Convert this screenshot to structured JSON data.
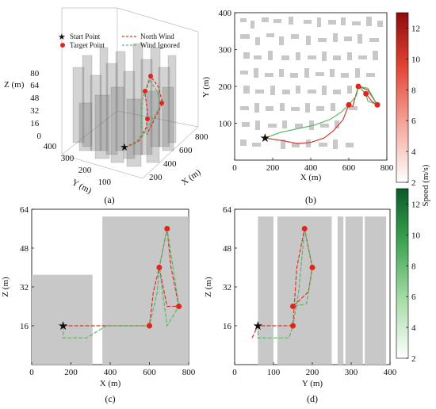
{
  "legend": {
    "start_point": "Start Point",
    "target_point": "Target Point",
    "north_wind": "North Wind",
    "wind_ignored": "Wind Ignored"
  },
  "colors": {
    "north_wind": "#d9362b",
    "wind_ignored": "#58b86a",
    "building": "#c8c8c8",
    "start": "#1f8a3a",
    "target": "#e0251b"
  },
  "colorbars": [
    {
      "label": "Speed (m/s)",
      "ticks": [
        "2",
        "4",
        "6",
        "8",
        "10",
        "12"
      ],
      "range": [
        2,
        13
      ],
      "colors": [
        "#ffffff",
        "#f5a49a",
        "#e0402f",
        "#8c0d0d"
      ]
    },
    {
      "label": "",
      "ticks": [
        "2",
        "4",
        "6",
        "8",
        "10",
        "12"
      ],
      "range": [
        2,
        13
      ],
      "colors": [
        "#ffffff",
        "#a6dba8",
        "#39a24f",
        "#0b5a2a"
      ]
    }
  ],
  "chart_data": [
    {
      "panel": "(a)",
      "type": "scatter",
      "kind": "3d-trajectory",
      "xlabel": "X (m)",
      "ylabel": "Y (m)",
      "zlabel": "Z (m)",
      "xticks": [
        "200",
        "400",
        "600",
        "800"
      ],
      "yticks": [
        "100",
        "200",
        "300",
        "400"
      ],
      "zticks": [
        "0",
        "16",
        "32",
        "48",
        "64",
        "80"
      ],
      "start": {
        "x": 160,
        "y": 60,
        "z": 16
      },
      "targets": [
        {
          "x": 600,
          "y": 150,
          "z": 16
        },
        {
          "x": 650,
          "y": 200,
          "z": 40
        },
        {
          "x": 690,
          "y": 180,
          "z": 56
        },
        {
          "x": 750,
          "y": 150,
          "z": 24
        }
      ]
    },
    {
      "panel": "(b)",
      "type": "line",
      "xlabel": "X (m)",
      "ylabel": "Y (m)",
      "xlim": [
        0,
        800
      ],
      "ylim": [
        0,
        400
      ],
      "xticks": [
        "0",
        "200",
        "400",
        "600",
        "800"
      ],
      "yticks": [
        "100",
        "200",
        "300",
        "400"
      ],
      "start": {
        "x": 160,
        "y": 60
      },
      "targets": [
        {
          "x": 600,
          "y": 150
        },
        {
          "x": 650,
          "y": 200
        },
        {
          "x": 690,
          "y": 180
        },
        {
          "x": 750,
          "y": 150
        }
      ],
      "series": [
        {
          "name": "North Wind",
          "x": [
            160,
            260,
            330,
            400,
            470,
            520,
            570,
            600,
            620,
            650,
            700,
            750,
            720,
            690,
            650
          ],
          "y": [
            60,
            52,
            45,
            48,
            60,
            80,
            110,
            150,
            145,
            200,
            190,
            150,
            160,
            180,
            200
          ]
        },
        {
          "name": "Wind Ignored",
          "x": [
            160,
            240,
            330,
            420,
            500,
            560,
            600,
            640,
            650,
            700,
            750,
            700,
            690,
            650
          ],
          "y": [
            60,
            75,
            85,
            95,
            110,
            130,
            150,
            175,
            200,
            195,
            150,
            160,
            180,
            200
          ]
        }
      ]
    },
    {
      "panel": "(c)",
      "type": "line",
      "xlabel": "X (m)",
      "ylabel": "Z (m)",
      "xlim": [
        0,
        800
      ],
      "ylim": [
        0,
        64
      ],
      "xticks": [
        "0",
        "200",
        "400",
        "600",
        "800"
      ],
      "yticks": [
        "16",
        "32",
        "48",
        "64"
      ],
      "start": {
        "x": 160,
        "y": 16
      },
      "targets": [
        {
          "x": 600,
          "y": 16
        },
        {
          "x": 650,
          "y": 40
        },
        {
          "x": 690,
          "y": 56
        },
        {
          "x": 750,
          "y": 24
        }
      ],
      "buildings": [
        {
          "x0": 0,
          "x1": 310,
          "y": 37
        },
        {
          "x0": 360,
          "x1": 800,
          "y": 61
        }
      ],
      "series": [
        {
          "name": "North Wind",
          "x": [
            160,
            600,
            620,
            650,
            690,
            710,
            750,
            690,
            650
          ],
          "y": [
            16,
            16,
            30,
            40,
            56,
            40,
            24,
            24,
            40
          ]
        },
        {
          "name": "Wind Ignored",
          "x": [
            160,
            160,
            280,
            380,
            600,
            640,
            650,
            690,
            730,
            750,
            690,
            650
          ],
          "y": [
            16,
            11,
            11,
            16,
            16,
            30,
            40,
            56,
            35,
            24,
            16,
            40
          ]
        }
      ]
    },
    {
      "panel": "(d)",
      "type": "line",
      "xlabel": "Y (m)",
      "ylabel": "Z (m)",
      "xlim": [
        0,
        400
      ],
      "ylim": [
        0,
        64
      ],
      "xticks": [
        "0",
        "100",
        "200",
        "300",
        "400"
      ],
      "yticks": [
        "16",
        "32",
        "48",
        "64"
      ],
      "start": {
        "x": 60,
        "y": 16
      },
      "targets": [
        {
          "x": 150,
          "y": 16
        },
        {
          "x": 150,
          "y": 24
        },
        {
          "x": 180,
          "y": 56
        },
        {
          "x": 200,
          "y": 40
        }
      ],
      "buildings": [
        {
          "x0": 60,
          "x1": 100,
          "y": 61
        },
        {
          "x0": 110,
          "x1": 250,
          "y": 61
        },
        {
          "x0": 265,
          "x1": 280,
          "y": 61
        },
        {
          "x0": 285,
          "x1": 330,
          "y": 61
        },
        {
          "x0": 335,
          "x1": 390,
          "y": 61
        }
      ],
      "series": [
        {
          "name": "North Wind",
          "x": [
            45,
            60,
            150,
            160,
            180,
            200,
            190,
            150
          ],
          "y": [
            11,
            16,
            16,
            40,
            56,
            40,
            30,
            24
          ]
        },
        {
          "name": "Wind Ignored",
          "x": [
            60,
            60,
            140,
            150,
            165,
            180,
            200,
            185,
            150
          ],
          "y": [
            16,
            11,
            11,
            16,
            30,
            56,
            40,
            25,
            24
          ]
        }
      ]
    }
  ],
  "captions": [
    "(a)",
    "(b)",
    "(c)",
    "(d)"
  ]
}
